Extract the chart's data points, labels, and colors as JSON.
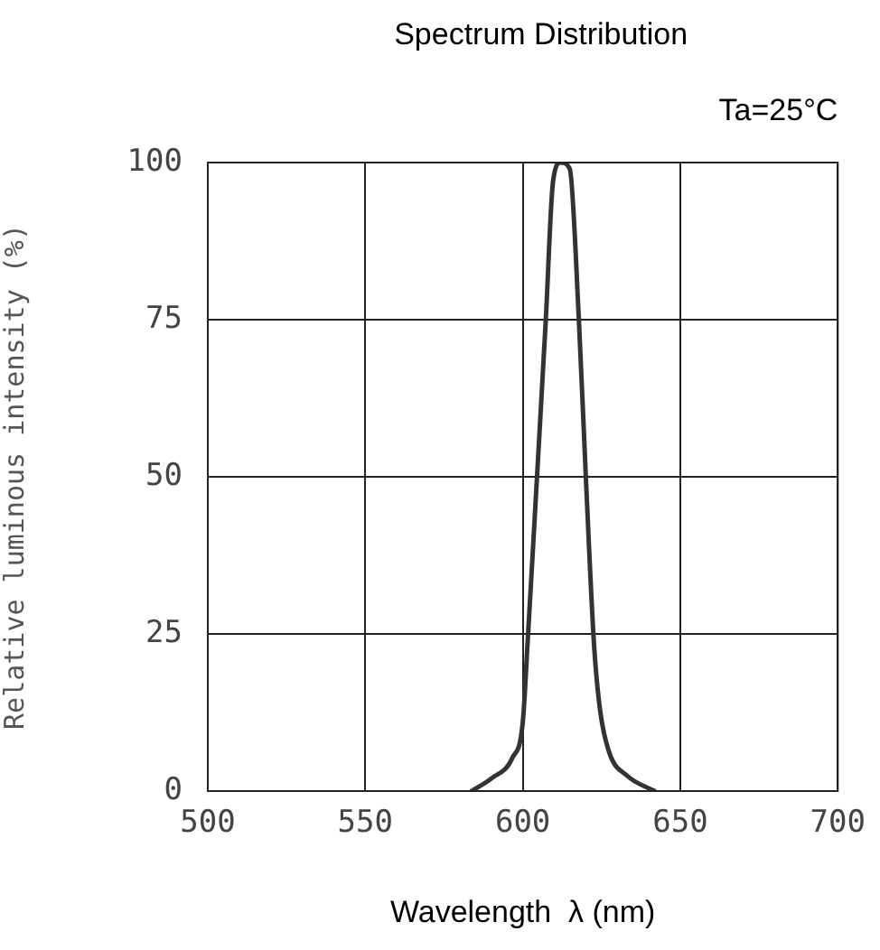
{
  "chart_data": {
    "type": "line",
    "title": "Spectrum Distribution",
    "annotations": [
      "Ta=25°C"
    ],
    "xlabel": "Wavelength  λ (nm)",
    "ylabel": "Relative luminous intensity (%)",
    "xlim": [
      500,
      700
    ],
    "xticks": [
      500,
      550,
      600,
      650,
      700
    ],
    "ylim": [
      0,
      100
    ],
    "yticks": [
      0,
      25,
      50,
      75,
      100
    ],
    "grid": true,
    "legend": false,
    "marker": "none",
    "line_style": "solid",
    "series": [
      {
        "color": "#333333",
        "x": [
          583.7,
          590,
          596.7,
          600,
          601.5,
          604.4,
          607.3,
          609.6,
          612,
          614.9,
          617.8,
          620.1,
          622.6,
          624.5,
          627.4,
          633.2,
          641.8
        ],
        "values": [
          0,
          2,
          5.3,
          11,
          23.4,
          49,
          75,
          97,
          100,
          99,
          75,
          49,
          23.4,
          13,
          6.2,
          2.4,
          0
        ]
      }
    ]
  }
}
